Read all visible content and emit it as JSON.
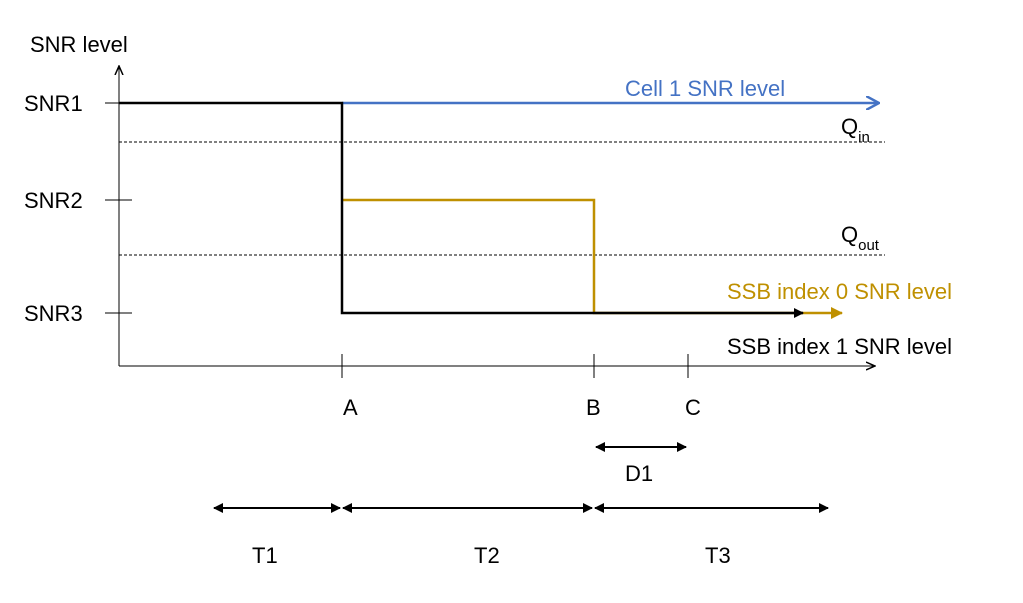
{
  "y_axis": {
    "label": "SNR level",
    "ticks": [
      "SNR1",
      "SNR2",
      "SNR3"
    ]
  },
  "x_axis": {
    "points": [
      "A",
      "B",
      "C"
    ]
  },
  "thresholds": [
    {
      "base": "Q",
      "sub": "in"
    },
    {
      "base": "Q",
      "sub": "out"
    }
  ],
  "series": {
    "cell1": {
      "label": "Cell 1 SNR level",
      "color": "#4472c4"
    },
    "ssb0": {
      "label": "SSB index 0 SNR level",
      "color": "#bf9000"
    },
    "ssb1": {
      "label": "SSB index 1 SNR level",
      "color": "#000000"
    }
  },
  "durations": {
    "d1": "D1",
    "t1": "T1",
    "t2": "T2",
    "t3": "T3"
  }
}
